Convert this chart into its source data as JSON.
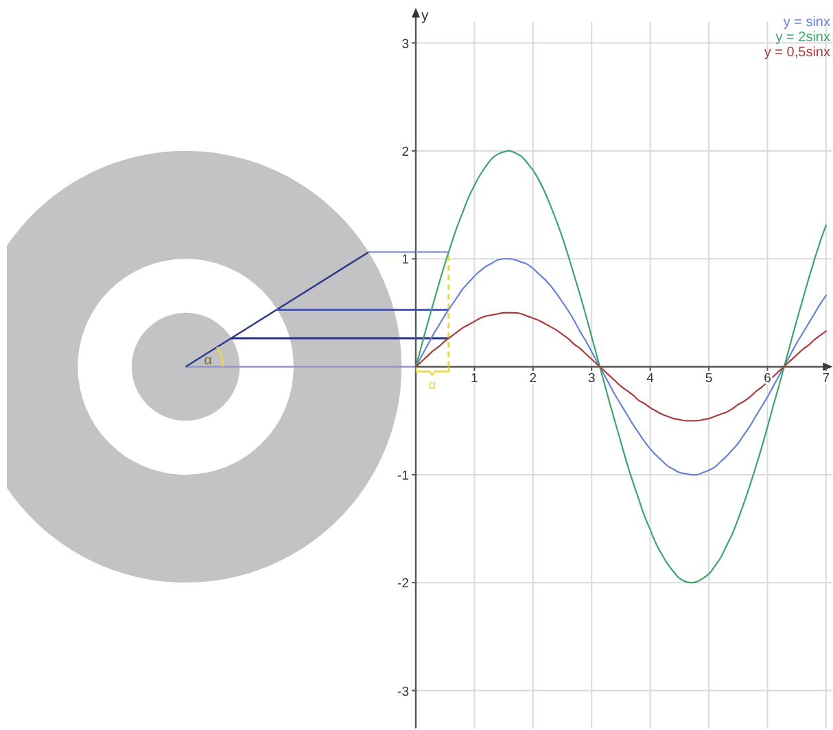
{
  "chart_data": {
    "type": "line",
    "ylabel": "y",
    "x": [
      0,
      0.1,
      0.2,
      0.3,
      0.4,
      0.5,
      0.6,
      0.7,
      0.8,
      0.9,
      1,
      1.1,
      1.2,
      1.3,
      1.4,
      1.5,
      1.6,
      1.7,
      1.8,
      1.9,
      2,
      2.1,
      2.2,
      2.3,
      2.4,
      2.5,
      2.6,
      2.7,
      2.8,
      2.9,
      3,
      3.1,
      3.2,
      3.3,
      3.4,
      3.5,
      3.6,
      3.7,
      3.8,
      3.9,
      4,
      4.1,
      4.2,
      4.3,
      4.4,
      4.5,
      4.6,
      4.7,
      4.8,
      4.9,
      5,
      5.1,
      5.2,
      5.3,
      5.4,
      5.5,
      5.6,
      5.7,
      5.8,
      5.9,
      6,
      6.1,
      6.2,
      6.3,
      6.4,
      6.5,
      6.6,
      6.7,
      6.8,
      6.9,
      7
    ],
    "series": [
      {
        "name": "y = sinx",
        "color": "#6a82d6",
        "values": [
          0,
          0.1,
          0.2,
          0.3,
          0.39,
          0.48,
          0.56,
          0.64,
          0.72,
          0.78,
          0.84,
          0.89,
          0.93,
          0.96,
          0.99,
          1.0,
          1.0,
          0.99,
          0.97,
          0.95,
          0.91,
          0.86,
          0.81,
          0.75,
          0.68,
          0.6,
          0.52,
          0.43,
          0.33,
          0.24,
          0.14,
          0.04,
          -0.06,
          -0.16,
          -0.26,
          -0.35,
          -0.44,
          -0.53,
          -0.61,
          -0.69,
          -0.76,
          -0.82,
          -0.87,
          -0.92,
          -0.95,
          -0.98,
          -0.99,
          -1.0,
          -1.0,
          -0.98,
          -0.96,
          -0.93,
          -0.88,
          -0.83,
          -0.77,
          -0.71,
          -0.63,
          -0.55,
          -0.46,
          -0.37,
          -0.28,
          -0.18,
          -0.08,
          0.02,
          0.12,
          0.22,
          0.31,
          0.4,
          0.49,
          0.58,
          0.66
        ]
      },
      {
        "name": "y = 2sinx",
        "color": "#3fa46c",
        "values": [
          0,
          0.2,
          0.4,
          0.59,
          0.78,
          0.96,
          1.13,
          1.29,
          1.43,
          1.57,
          1.68,
          1.78,
          1.86,
          1.93,
          1.97,
          1.99,
          2.0,
          1.98,
          1.95,
          1.89,
          1.82,
          1.73,
          1.62,
          1.49,
          1.35,
          1.2,
          1.03,
          0.85,
          0.67,
          0.48,
          0.28,
          0.08,
          -0.12,
          -0.32,
          -0.51,
          -0.7,
          -0.89,
          -1.06,
          -1.22,
          -1.38,
          -1.51,
          -1.64,
          -1.74,
          -1.83,
          -1.9,
          -1.96,
          -1.99,
          -2.0,
          -1.99,
          -1.96,
          -1.92,
          -1.85,
          -1.77,
          -1.66,
          -1.55,
          -1.41,
          -1.26,
          -1.1,
          -0.93,
          -0.75,
          -0.56,
          -0.36,
          -0.17,
          0.03,
          0.23,
          0.43,
          0.62,
          0.81,
          0.99,
          1.16,
          1.31
        ]
      },
      {
        "name": "y = 0,5sinx",
        "color": "#aa3c3c",
        "values": [
          0,
          0.05,
          0.1,
          0.15,
          0.19,
          0.24,
          0.28,
          0.32,
          0.36,
          0.39,
          0.42,
          0.45,
          0.47,
          0.48,
          0.49,
          0.5,
          0.5,
          0.5,
          0.49,
          0.47,
          0.45,
          0.43,
          0.4,
          0.37,
          0.34,
          0.3,
          0.26,
          0.21,
          0.17,
          0.12,
          0.07,
          0.02,
          -0.03,
          -0.08,
          -0.13,
          -0.18,
          -0.22,
          -0.26,
          -0.31,
          -0.34,
          -0.38,
          -0.41,
          -0.44,
          -0.46,
          -0.48,
          -0.49,
          -0.5,
          -0.5,
          -0.5,
          -0.49,
          -0.48,
          -0.46,
          -0.44,
          -0.42,
          -0.39,
          -0.35,
          -0.32,
          -0.28,
          -0.23,
          -0.19,
          -0.14,
          -0.09,
          -0.04,
          0.01,
          0.06,
          0.11,
          0.16,
          0.2,
          0.25,
          0.29,
          0.33
        ]
      }
    ],
    "xlim": [
      0,
      7.1
    ],
    "ylim": [
      -3.35,
      3.3
    ],
    "xticks": [
      1,
      2,
      3,
      4,
      5,
      6,
      7
    ],
    "yticks": [
      -3,
      -2,
      -1,
      1,
      2,
      3
    ],
    "grid": true,
    "legend": "top right",
    "ref_lines": [
      {
        "axis": "x",
        "value": 0.56,
        "label": "α",
        "color": "#e6d94c",
        "line_style": "dashed"
      }
    ],
    "annotations": [
      "α"
    ]
  }
}
